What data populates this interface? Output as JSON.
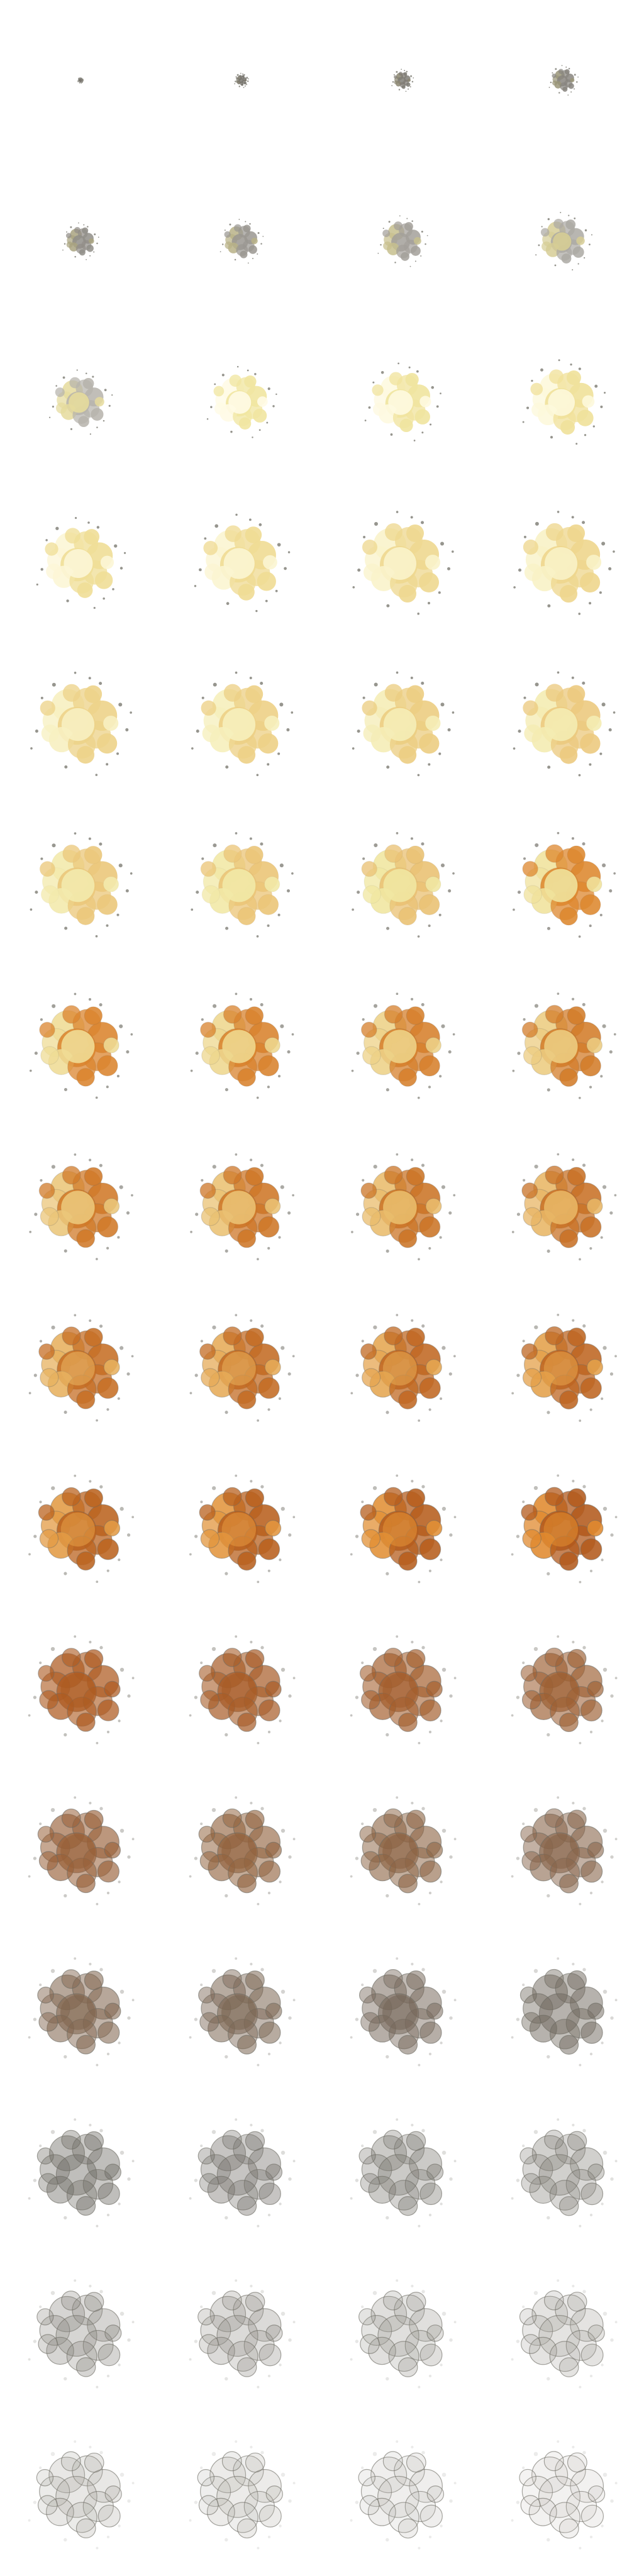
{
  "spritesheet": {
    "columns": 4,
    "rows": 16,
    "frame_count": 64,
    "subject": "explosion",
    "colors": {
      "background": "#ffffff",
      "flash": "#fffbe6",
      "hot_yellow": "#f1e7a2",
      "fire_orange": "#e08a2f",
      "deep_orange": "#b35a1c",
      "smoke_dark": "#6d6a63",
      "smoke_light": "#bdbab4",
      "debris": "#7c7a72"
    }
  }
}
